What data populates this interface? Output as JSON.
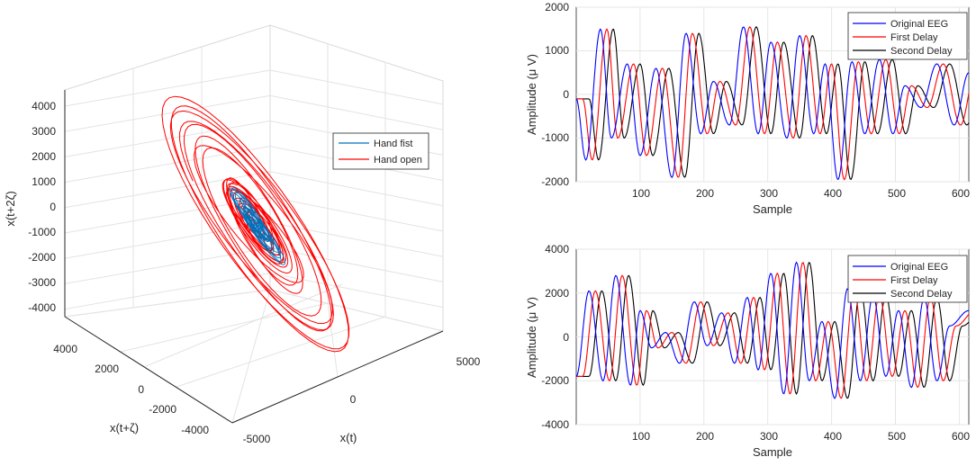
{
  "chart_data": [
    {
      "type": "line3d",
      "xlabel": "x(t)",
      "ylabel": "x(t+ζ)",
      "zlabel": "x(t+2ζ)",
      "x_ticks": [
        "-5000",
        "0",
        "5000"
      ],
      "y_ticks": [
        "4000",
        "2000",
        "0",
        "-2000",
        "-4000"
      ],
      "z_ticks": [
        "4000",
        "3000",
        "2000",
        "1000",
        "0",
        "-1000",
        "-2000",
        "-3000",
        "-4000"
      ],
      "grid": true,
      "legend": {
        "placement": "center-right",
        "entries": [
          "Hand fist",
          "Hand open"
        ]
      },
      "series": [
        {
          "name": "Hand fist",
          "color": "#0072bd",
          "spread": 1100
        },
        {
          "name": "Hand open",
          "color": "#ff0000",
          "spread": 3000
        }
      ]
    },
    {
      "type": "line",
      "xlabel": "Sample",
      "ylabel": "Amplitude (μ V)",
      "xlim": [
        0,
        615
      ],
      "ylim": [
        -2000,
        2000
      ],
      "x_ticks": [
        "100",
        "200",
        "300",
        "400",
        "500",
        "600"
      ],
      "y_ticks": [
        "2000",
        "1000",
        "0",
        "-1000",
        "-2000"
      ],
      "grid": true,
      "legend": {
        "placement": "top-right",
        "entries": [
          "Original EEG",
          "First Delay",
          "Second Delay"
        ]
      },
      "keypoints": [
        [
          0,
          -100
        ],
        [
          15,
          -1500
        ],
        [
          38,
          1500
        ],
        [
          55,
          -1000
        ],
        [
          80,
          700
        ],
        [
          100,
          -1400
        ],
        [
          125,
          600
        ],
        [
          150,
          -1900
        ],
        [
          172,
          1400
        ],
        [
          195,
          -900
        ],
        [
          215,
          300
        ],
        [
          240,
          -700
        ],
        [
          262,
          1550
        ],
        [
          285,
          -900
        ],
        [
          305,
          1200
        ],
        [
          330,
          -1000
        ],
        [
          350,
          1350
        ],
        [
          372,
          -900
        ],
        [
          390,
          700
        ],
        [
          410,
          -1950
        ],
        [
          432,
          750
        ],
        [
          452,
          -900
        ],
        [
          475,
          800
        ],
        [
          496,
          -900
        ],
        [
          515,
          200
        ],
        [
          540,
          -300
        ],
        [
          565,
          700
        ],
        [
          592,
          -700
        ],
        [
          615,
          500
        ]
      ],
      "delays": [
        0,
        10,
        20
      ],
      "series": [
        {
          "name": "Original EEG",
          "color": "#0000ff"
        },
        {
          "name": "First Delay",
          "color": "#ff0000"
        },
        {
          "name": "Second Delay",
          "color": "#000000"
        }
      ]
    },
    {
      "type": "line",
      "xlabel": "Sample",
      "ylabel": "Amplitude (μ V)",
      "xlim": [
        0,
        615
      ],
      "ylim": [
        -4000,
        4000
      ],
      "x_ticks": [
        "100",
        "200",
        "300",
        "400",
        "500",
        "600"
      ],
      "y_ticks": [
        "4000",
        "2000",
        "0",
        "-2000",
        "-4000"
      ],
      "grid": true,
      "legend": {
        "placement": "top-right",
        "entries": [
          "Original EEG",
          "First Delay",
          "Second Delay"
        ]
      },
      "keypoints": [
        [
          0,
          -1800
        ],
        [
          20,
          2100
        ],
        [
          42,
          -2000
        ],
        [
          62,
          2800
        ],
        [
          85,
          -2200
        ],
        [
          100,
          1200
        ],
        [
          118,
          -500
        ],
        [
          140,
          200
        ],
        [
          162,
          -1200
        ],
        [
          185,
          1600
        ],
        [
          205,
          -400
        ],
        [
          228,
          1100
        ],
        [
          248,
          -1200
        ],
        [
          268,
          1800
        ],
        [
          285,
          -1500
        ],
        [
          305,
          2900
        ],
        [
          325,
          -2600
        ],
        [
          345,
          3400
        ],
        [
          365,
          -2000
        ],
        [
          385,
          700
        ],
        [
          405,
          -2800
        ],
        [
          425,
          2200
        ],
        [
          445,
          -2000
        ],
        [
          465,
          1900
        ],
        [
          485,
          -1800
        ],
        [
          505,
          1200
        ],
        [
          525,
          -2300
        ],
        [
          545,
          1800
        ],
        [
          565,
          -2000
        ],
        [
          585,
          500
        ],
        [
          615,
          1200
        ]
      ],
      "delays": [
        0,
        10,
        20
      ],
      "series": [
        {
          "name": "Original EEG",
          "color": "#0000ff"
        },
        {
          "name": "First Delay",
          "color": "#ff0000"
        },
        {
          "name": "Second Delay",
          "color": "#000000"
        }
      ]
    }
  ]
}
